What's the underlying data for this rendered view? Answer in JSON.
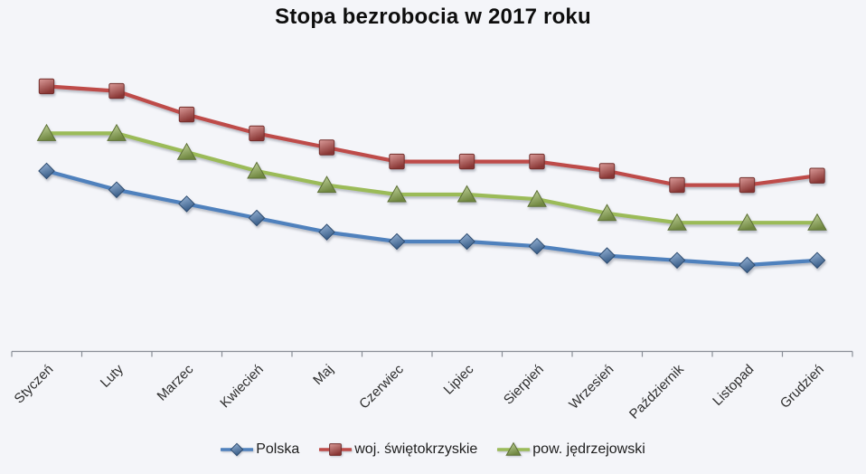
{
  "chart_data": {
    "type": "line",
    "title": "Stopa bezrobocia w 2017 roku",
    "categories": [
      "Styczeń",
      "Luty",
      "Marzec",
      "Kwiecień",
      "Maj",
      "Czerwiec",
      "Lipiec",
      "Sierpień",
      "Wrzesień",
      "Październik",
      "Listopad",
      "Grudzień"
    ],
    "series": [
      {
        "name": "Polska",
        "marker": "diamond",
        "color": "#4F81BD",
        "values": [
          8.5,
          8.1,
          7.8,
          7.5,
          7.2,
          7.0,
          7.0,
          6.9,
          6.7,
          6.6,
          6.5,
          6.6
        ]
      },
      {
        "name": "woj. świętokrzyskie",
        "marker": "square",
        "color": "#BE4B48",
        "values": [
          10.3,
          10.2,
          9.7,
          9.3,
          9.0,
          8.7,
          8.7,
          8.7,
          8.5,
          8.2,
          8.2,
          8.4
        ]
      },
      {
        "name": "pow. jędrzejowski",
        "marker": "triangle",
        "color": "#9BBB59",
        "values": [
          9.3,
          9.3,
          8.9,
          8.5,
          8.2,
          8.0,
          8.0,
          7.9,
          7.6,
          7.4,
          7.4,
          7.4
        ]
      }
    ],
    "xlabel": "",
    "ylabel": "",
    "ylim": [
      6,
      11
    ],
    "grid": false,
    "x_label_rotation_deg": 45,
    "legend_position": "bottom"
  },
  "colors": {
    "background": "#f4f5f9",
    "axis": "#8a8f98",
    "title_text": "#0e0e0e",
    "axis_label_text": "#2e2e2e",
    "legend_text": "#1d1d1d"
  }
}
